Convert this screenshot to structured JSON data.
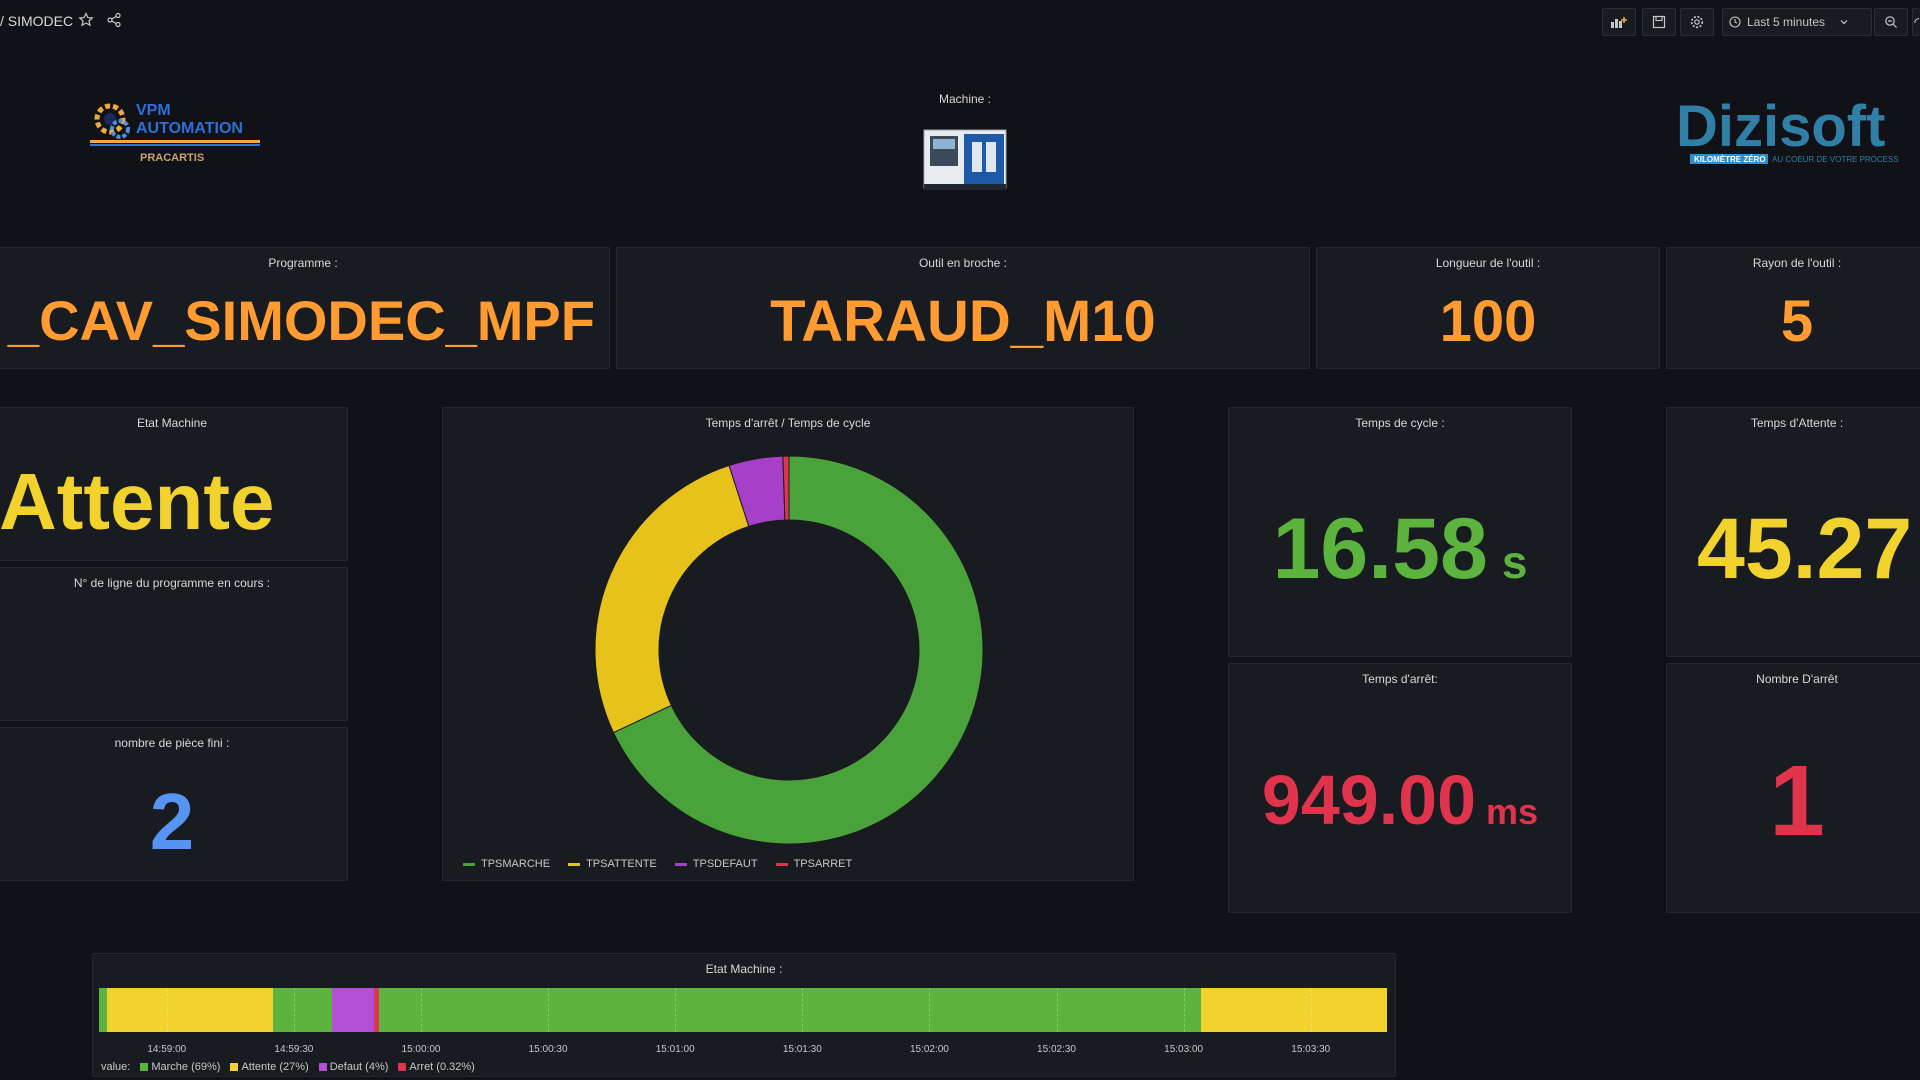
{
  "header": {
    "breadcrumb": "/ SIMODEC",
    "time_range": "Last 5 minutes"
  },
  "logos": {
    "vpm_line1": "VPM",
    "vpm_line2": "AUTOMATION",
    "vpm_line3": "PRACARTIS",
    "dizisoft_name": "Dizisoft",
    "dizisoft_tag1": "KILOMÈTRE ZÉRO",
    "dizisoft_tag2": "AU COEUR DE VOTRE PROCESS"
  },
  "machine": {
    "label": "Machine :"
  },
  "panels": {
    "programme": {
      "title": "Programme :",
      "value": "_CAV_SIMODEC_MPF"
    },
    "outil": {
      "title": "Outil en broche :",
      "value": "TARAUD_M10"
    },
    "longueur": {
      "title": "Longueur de l'outil :",
      "value": "100"
    },
    "rayon": {
      "title": "Rayon de l'outil :",
      "value": "5"
    },
    "etat": {
      "title": "Etat Machine",
      "value": "Attente"
    },
    "ligne": {
      "title": "N° de ligne du programme en cours :"
    },
    "pieces": {
      "title": "nombre de pièce fini :",
      "value": "2"
    },
    "cycle": {
      "title": "Temps de cycle :",
      "value": "16.58",
      "unit": "s"
    },
    "attente": {
      "title": "Temps d'Attente :",
      "value": "45.27"
    },
    "arret": {
      "title": "Temps d'arrêt:",
      "value": "949.00",
      "unit": "ms"
    },
    "nb_arret": {
      "title": "Nombre D'arrêt",
      "value": "1"
    },
    "donut": {
      "title": "Temps d'arrêt / Temps de cycle"
    },
    "timeline": {
      "title": "Etat Machine :",
      "legend_prefix": "value:"
    }
  },
  "colors": {
    "green": "#5cb33e",
    "yellow": "#f2d22c",
    "purple": "#b350d6",
    "red": "#e0344d",
    "orange": "#ff9b30",
    "blue": "#5794f2"
  },
  "chart_data": [
    {
      "type": "pie",
      "donut": true,
      "labels": [
        "TPSMARCHE",
        "TPSATTENTE",
        "TPSDEFAUT",
        "TPSARRET"
      ],
      "values": [
        68,
        27,
        4.5,
        0.5
      ],
      "colors": [
        "#4aa33a",
        "#e6c21b",
        "#a640c9",
        "#e0344d"
      ]
    },
    {
      "type": "timeline",
      "title": "Etat Machine :",
      "x_ticks": [
        "14:59:00",
        "14:59:30",
        "15:00:00",
        "15:00:30",
        "15:01:00",
        "15:01:30",
        "15:02:00",
        "15:02:30",
        "15:03:00",
        "15:03:30"
      ],
      "x_start": "14:58:44",
      "x_end": "15:03:48",
      "segments": [
        {
          "state": "Marche",
          "start": "14:58:44",
          "end": "14:58:46"
        },
        {
          "state": "Attente",
          "start": "14:58:46",
          "end": "14:59:25"
        },
        {
          "state": "Marche",
          "start": "14:59:25",
          "end": "14:59:39"
        },
        {
          "state": "Defaut",
          "start": "14:59:39",
          "end": "14:59:49"
        },
        {
          "state": "Arret",
          "start": "14:59:49",
          "end": "14:59:50"
        },
        {
          "state": "Marche",
          "start": "14:59:50",
          "end": "15:03:04"
        },
        {
          "state": "Attente",
          "start": "15:03:04",
          "end": "15:03:48"
        }
      ],
      "legend": [
        {
          "name": "Marche (69%)",
          "color": "#5cb33e"
        },
        {
          "name": "Attente (27%)",
          "color": "#f2d22c"
        },
        {
          "name": "Defaut (4%)",
          "color": "#b350d6"
        },
        {
          "name": "Arret (0.32%)",
          "color": "#e0344d"
        }
      ],
      "state_colors": {
        "Marche": "#5cb33e",
        "Attente": "#f2d22c",
        "Defaut": "#b350d6",
        "Arret": "#e0344d"
      }
    }
  ]
}
